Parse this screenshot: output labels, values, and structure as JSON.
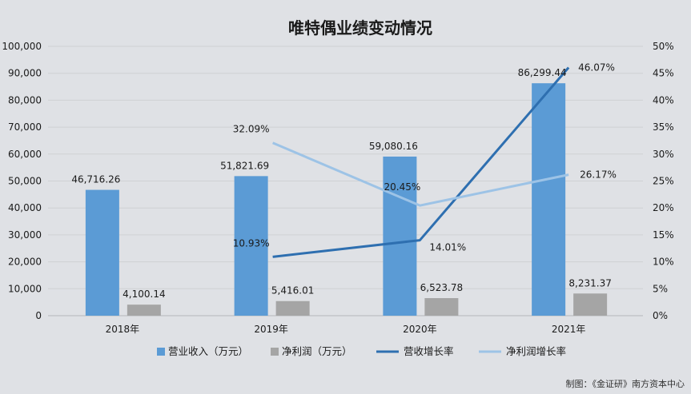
{
  "chart_data": {
    "type": "bar",
    "title": "唯特偶业绩变动情况",
    "categories": [
      "2018年",
      "2019年",
      "2020年",
      "2021年"
    ],
    "bar_series": [
      {
        "name": "营业收入（万元）",
        "values": [
          46716.26,
          51821.69,
          59080.16,
          86299.44
        ],
        "labels": [
          "46,716.26",
          "51,821.69",
          "59,080.16",
          "86,299.44"
        ],
        "color": "#5b9bd5"
      },
      {
        "name": "净利润（万元）",
        "values": [
          4100.14,
          5416.01,
          6523.78,
          8231.37
        ],
        "labels": [
          "4,100.14",
          "5,416.01",
          "6,523.78",
          "8,231.37"
        ],
        "color": "#a5a5a5"
      }
    ],
    "line_series": [
      {
        "name": "营收增长率",
        "values": [
          null,
          10.93,
          14.01,
          46.07
        ],
        "labels": [
          "",
          "10.93%",
          "14.01%",
          "46.07%"
        ],
        "color": "#2e6fb0"
      },
      {
        "name": "净利润增长率",
        "values": [
          null,
          32.09,
          20.45,
          26.17
        ],
        "labels": [
          "",
          "32.09%",
          "20.45%",
          "26.17%"
        ],
        "color": "#9dc3e6"
      }
    ],
    "ylim_left": [
      0,
      100000
    ],
    "yticks_left": [
      "0",
      "10,000",
      "20,000",
      "30,000",
      "40,000",
      "50,000",
      "60,000",
      "70,000",
      "80,000",
      "90,000",
      "100,000"
    ],
    "ylim_right": [
      0,
      50
    ],
    "yticks_right": [
      "0%",
      "5%",
      "10%",
      "15%",
      "20%",
      "25%",
      "30%",
      "35%",
      "40%",
      "45%",
      "50%"
    ],
    "grid": true,
    "legend_position": "bottom"
  },
  "footer": {
    "credit": "制图：《金证研》南方资本中心"
  }
}
